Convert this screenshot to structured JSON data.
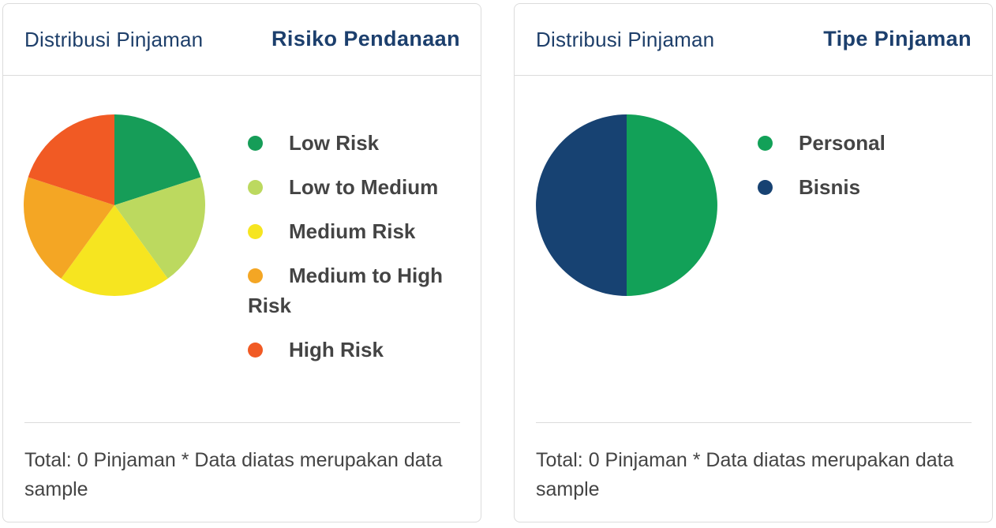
{
  "cards": [
    {
      "label": "Distribusi Pinjaman",
      "title": "Risiko Pendanaan",
      "footer": "Total: 0 Pinjaman * Data diatas merupakan data sample"
    },
    {
      "label": "Distribusi Pinjaman",
      "title": "Tipe Pinjaman",
      "footer": "Total: 0 Pinjaman * Data diatas merupakan data sample"
    }
  ],
  "chart_data": [
    {
      "type": "pie",
      "title": "Risiko Pendanaan",
      "categories": [
        "Low Risk",
        "Low to Medium",
        "Medium Risk",
        "Medium to High Risk",
        "High Risk"
      ],
      "values": [
        1,
        1,
        1,
        1,
        1
      ],
      "colors": [
        "#169d58",
        "#bcd95f",
        "#f6e520",
        "#f4a624",
        "#f15a24"
      ],
      "legend": "right"
    },
    {
      "type": "pie",
      "title": "Tipe Pinjaman",
      "categories": [
        "Personal",
        "Bisnis"
      ],
      "values": [
        1,
        1
      ],
      "colors": [
        "#12a158",
        "#174272"
      ],
      "legend": "right"
    }
  ]
}
